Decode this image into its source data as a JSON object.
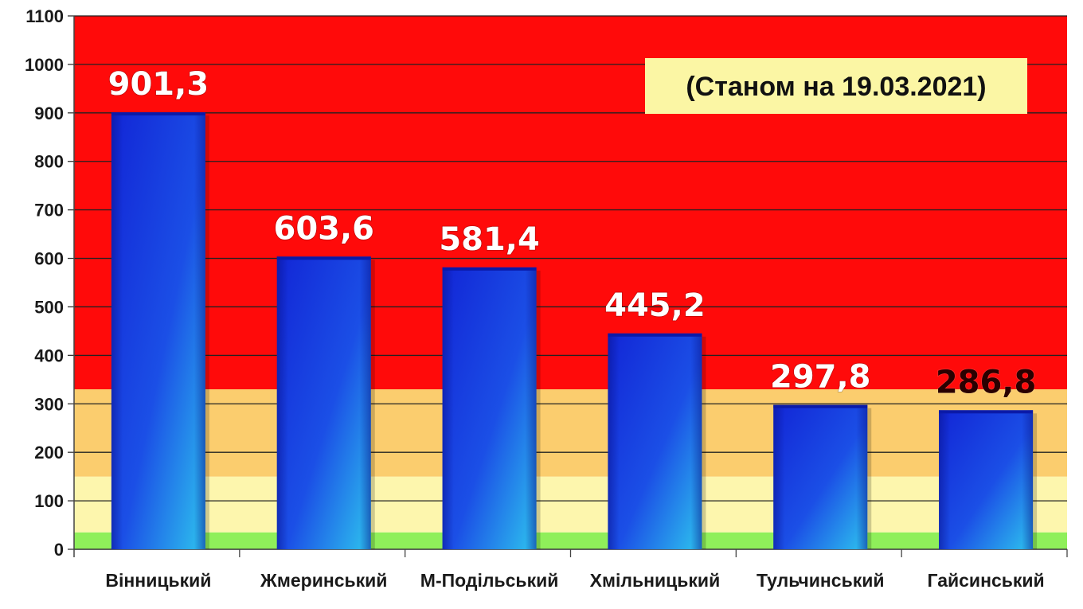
{
  "chart_data": {
    "type": "bar",
    "title": "",
    "xlabel": "",
    "ylabel": "",
    "annotation": "(Станом на 19.03.2021)",
    "categories": [
      "Вінницький",
      "Жмеринський",
      "М-Подільський",
      "Хмільницький",
      "Тульчинський",
      "Гайсинський"
    ],
    "values": [
      901.3,
      603.6,
      581.4,
      445.2,
      297.8,
      286.8
    ],
    "value_labels": [
      "901,3",
      "603,6",
      "581,4",
      "445,2",
      "297,8",
      "286,8"
    ],
    "ylim": [
      0,
      1100
    ],
    "yticks": [
      0,
      100,
      200,
      300,
      400,
      500,
      600,
      700,
      800,
      900,
      1000,
      1100
    ],
    "grid": true,
    "background_zones": [
      {
        "from": 0,
        "to": 35,
        "color": "#8fef5a"
      },
      {
        "from": 35,
        "to": 150,
        "color": "#fdf6ad"
      },
      {
        "from": 150,
        "to": 330,
        "color": "#fbcd6e"
      },
      {
        "from": 330,
        "to": 1100,
        "color": "#ff0a0a"
      }
    ],
    "colors": {
      "bar_top": "#1226d6",
      "bar_bottom": "#2ec4ee",
      "grid": "#222222"
    }
  }
}
